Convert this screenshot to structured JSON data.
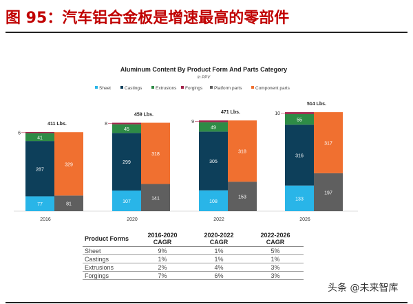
{
  "figure_title": "图 95：汽车铝合金板是增速最高的零部件",
  "watermark": "头条 @未来智库",
  "chart_data": {
    "type": "bar",
    "stacked": true,
    "title": "Aluminum Content By Product Form And Parts Category",
    "subtitle": "in PPV",
    "legend_position": "top",
    "categories": [
      "2016",
      "2020",
      "2022",
      "2026"
    ],
    "totals": [
      "411 Lbs.",
      "459 Lbs.",
      "471 Lbs.",
      "514 Lbs."
    ],
    "product_form_series": [
      {
        "name": "Sheet",
        "color": "#29b5e8",
        "values": [
          77,
          107,
          108,
          133
        ]
      },
      {
        "name": "Castings",
        "color": "#0d3f5a",
        "values": [
          287,
          299,
          305,
          316
        ]
      },
      {
        "name": "Extrusions",
        "color": "#2e8b46",
        "values": [
          41,
          45,
          49,
          55
        ]
      },
      {
        "name": "Forgings",
        "color": "#a3234a",
        "values": [
          6,
          8,
          9,
          10
        ]
      }
    ],
    "parts_series": [
      {
        "name": "Platform parts",
        "color": "#5f5f5f",
        "values": [
          81,
          141,
          153,
          197
        ]
      },
      {
        "name": "Component parts",
        "color": "#f07030",
        "values": [
          329,
          318,
          318,
          317
        ]
      }
    ],
    "grid": false
  },
  "table": {
    "headers": [
      "Product Forms",
      "2016-2020 CAGR",
      "2020-2022 CAGR",
      "2022-2026 CAGR"
    ],
    "rows": [
      [
        "Sheet",
        "9%",
        "1%",
        "5%"
      ],
      [
        "Castings",
        "1%",
        "1%",
        "1%"
      ],
      [
        "Extrusions",
        "2%",
        "4%",
        "3%"
      ],
      [
        "Forgings",
        "7%",
        "6%",
        "3%"
      ]
    ]
  }
}
